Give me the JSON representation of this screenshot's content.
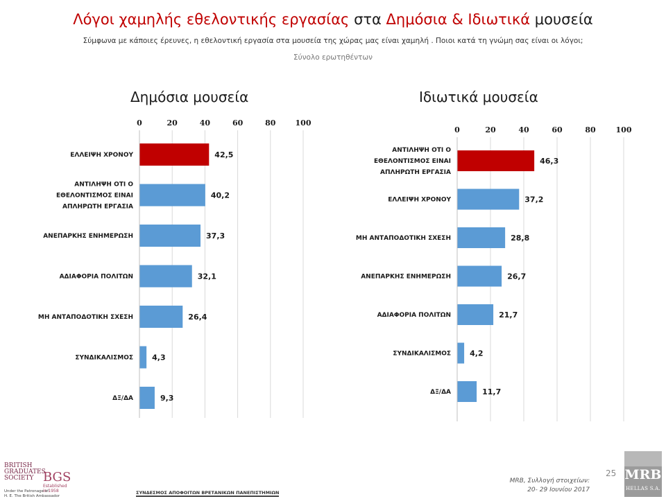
{
  "header": {
    "title_part1": "Λόγοι χαμηλής εθελοντικής εργασίας",
    "title_part2": " στα ",
    "title_part3": "Δημόσια & Ιδιωτικά",
    "title_part4": " μουσεία",
    "subtitle": "Σύμφωνα με κάποιες έρευνες, η εθελοντική εργασία στα μουσεία της χώρας μας είναι χαμηλή . Ποιοι κατά τη γνώμη σας είναι οι λόγοι;",
    "base": "Σύνολο ερωτηθέντων"
  },
  "colors": {
    "accent_red": "#c00000",
    "bar_highlight": "#c00000",
    "bar_normal": "#5b9bd5",
    "grid": "#d9d9d9"
  },
  "chart_data": [
    {
      "type": "bar",
      "orientation": "horizontal",
      "title": "Δημόσια μουσεία",
      "categories": [
        "ΕΛΛΕΙΨΗ ΧΡΟΝΟΥ",
        "ΑΝΤΙΛΗΨΗ ΟΤΙ Ο ΕΘΕΛΟΝΤΙΣΜΟΣ ΕΙΝΑΙ ΑΠΛΗΡΩΤΗ ΕΡΓΑΣΙΑ",
        "ΑΝΕΠΑΡΚΗΣ ΕΝΗΜΕΡΩΣΗ",
        "ΑΔΙΑΦΟΡΙΑ ΠΟΛΙΤΩΝ",
        "ΜΗ ΑΝΤΑΠΟΔΟΤΙΚΗ ΣΧΕΣΗ",
        "ΣΥΝΔΙΚΑΛΙΣΜΟΣ",
        "ΔΞ/ΔΑ"
      ],
      "category_lines": [
        [
          "ΕΛΛΕΙΨΗ ΧΡΟΝΟΥ"
        ],
        [
          "ΑΝΤΙΛΗΨΗ ΟΤΙ Ο",
          "ΕΘΕΛΟΝΤΙΣΜΟΣ ΕΙΝΑΙ",
          "ΑΠΛΗΡΩΤΗ ΕΡΓΑΣΙΑ"
        ],
        [
          "ΑΝΕΠΑΡΚΗΣ ΕΝΗΜΕΡΩΣΗ"
        ],
        [
          "ΑΔΙΑΦΟΡΙΑ ΠΟΛΙΤΩΝ"
        ],
        [
          "ΜΗ ΑΝΤΑΠΟΔΟΤΙΚΗ ΣΧΕΣΗ"
        ],
        [
          "ΣΥΝΔΙΚΑΛΙΣΜΟΣ"
        ],
        [
          "ΔΞ/ΔΑ"
        ]
      ],
      "values": [
        42.5,
        40.2,
        37.3,
        32.1,
        26.4,
        4.3,
        9.3
      ],
      "value_labels": [
        "42,5",
        "40,2",
        "37,3",
        "32,1",
        "26,4",
        "4,3",
        "9,3"
      ],
      "highlight_index": 0,
      "xlim": [
        0,
        100
      ],
      "xticks": [
        0,
        20,
        40,
        60,
        80,
        100
      ],
      "x_axis_position": "top",
      "grid": true
    },
    {
      "type": "bar",
      "orientation": "horizontal",
      "title": "Ιδιωτικά μουσεία",
      "categories": [
        "ΑΝΤΙΛΗΨΗ ΟΤΙ Ο ΕΘΕΛΟΝΤΙΣΜΟΣ ΕΙΝΑΙ ΑΠΛΗΡΩΤΗ ΕΡΓΑΣΙΑ",
        "ΕΛΛΕΙΨΗ ΧΡΟΝΟΥ",
        "ΜΗ ΑΝΤΑΠΟΔΟΤΙΚΗ ΣΧΕΣΗ",
        "ΑΝΕΠΑΡΚΗΣ ΕΝΗΜΕΡΩΣΗ",
        "ΑΔΙΑΦΟΡΙΑ ΠΟΛΙΤΩΝ",
        "ΣΥΝΔΙΚΑΛΙΣΜΟΣ",
        "ΔΞ/ΔΑ"
      ],
      "category_lines": [
        [
          "ΑΝΤΙΛΗΨΗ ΟΤΙ Ο",
          "ΕΘΕΛΟΝΤΙΣΜΟΣ ΕΙΝΑΙ",
          "ΑΠΛΗΡΩΤΗ ΕΡΓΑΣΙΑ"
        ],
        [
          "ΕΛΛΕΙΨΗ ΧΡΟΝΟΥ"
        ],
        [
          "ΜΗ ΑΝΤΑΠΟΔΟΤΙΚΗ ΣΧΕΣΗ"
        ],
        [
          "ΑΝΕΠΑΡΚΗΣ ΕΝΗΜΕΡΩΣΗ"
        ],
        [
          "ΑΔΙΑΦΟΡΙΑ ΠΟΛΙΤΩΝ"
        ],
        [
          "ΣΥΝΔΙΚΑΛΙΣΜΟΣ"
        ],
        [
          "ΔΞ/ΔΑ"
        ]
      ],
      "values": [
        46.3,
        37.2,
        28.8,
        26.7,
        21.7,
        4.2,
        11.7
      ],
      "value_labels": [
        "46,3",
        "37,2",
        "28,8",
        "26,7",
        "21,7",
        "4,2",
        "11,7"
      ],
      "highlight_index": 0,
      "xlim": [
        0,
        100
      ],
      "xticks": [
        0,
        20,
        40,
        60,
        80,
        100
      ],
      "x_axis_position": "top",
      "grid": true
    }
  ],
  "footer": {
    "page_number": "25",
    "source_line1": "MRB, Συλλογή στοιχείων:",
    "source_line2": "20- 29 Ιουνίου 2017",
    "mrb_name": "MRB",
    "mrb_sub": "HELLAS S.A.",
    "bgs_line1": "BRITISH",
    "bgs_line2": "GRADUATES",
    "bgs_line3": "SOCIETY",
    "bgs_abbr": "BGS",
    "bgs_established": "Established in 1958",
    "patron_line1": "Under the Patronage of",
    "patron_line2": "H. E. The British Ambassador",
    "association": "ΣΥΝΔΕΣΜΟΣ ΑΠΟΦΟΙΤΩΝ ΒΡΕΤΑΝΙΚΩΝ ΠΑΝΕΠΙΣΤΗΜΙΩΝ"
  }
}
